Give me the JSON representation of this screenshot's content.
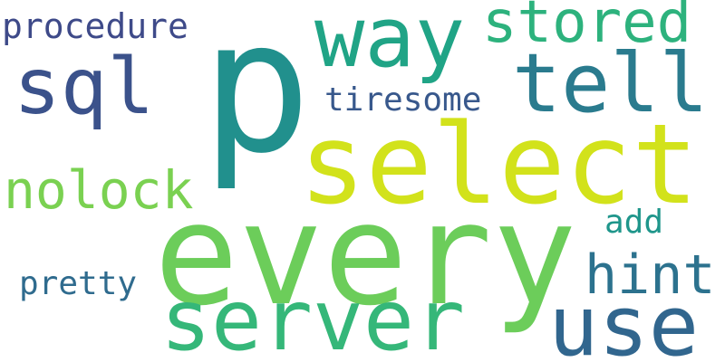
{
  "words": [
    {
      "text": "p",
      "color": "#21908d"
    },
    {
      "text": "every",
      "color": "#6ccd5a"
    },
    {
      "text": "select",
      "color": "#d2e21b"
    },
    {
      "text": "server",
      "color": "#35b779"
    },
    {
      "text": "use",
      "color": "#31668e"
    },
    {
      "text": "way",
      "color": "#20a486"
    },
    {
      "text": "tell",
      "color": "#2a7b8e"
    },
    {
      "text": "sql",
      "color": "#3b528b"
    },
    {
      "text": "stored",
      "color": "#2db27d"
    },
    {
      "text": "hint",
      "color": "#2c728e"
    },
    {
      "text": "nolock",
      "color": "#7ad151"
    },
    {
      "text": "procedure",
      "color": "#3e4a89"
    },
    {
      "text": "tiresome",
      "color": "#38588c"
    },
    {
      "text": "pretty",
      "color": "#2f6b8e"
    },
    {
      "text": "add",
      "color": "#1f968b"
    }
  ]
}
